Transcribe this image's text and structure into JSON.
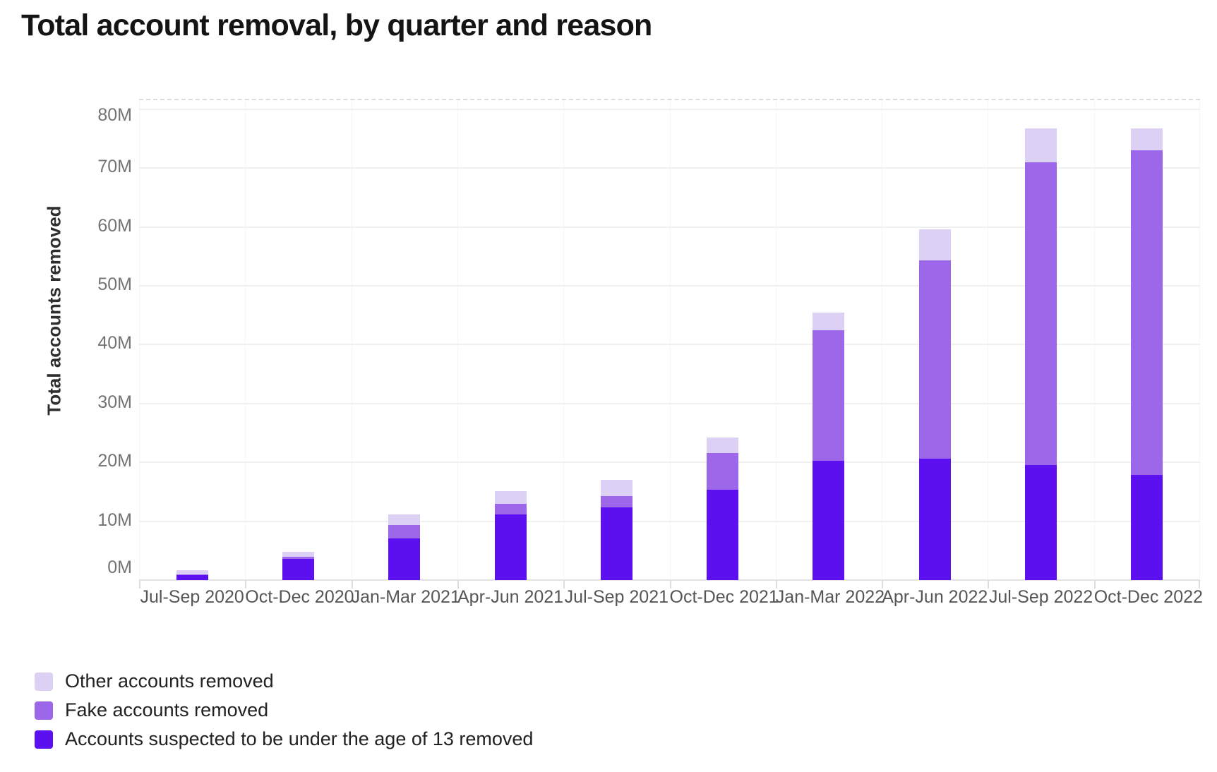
{
  "title": "Total account removal, by quarter and reason",
  "chart_data": {
    "type": "bar",
    "stacked": true,
    "title": "Total account removal, by quarter and reason",
    "xlabel": "",
    "ylabel": "Total accounts removed",
    "ylim": [
      0,
      80
    ],
    "grid": true,
    "legend_position": "bottom-left",
    "yticks": [
      0,
      10,
      20,
      30,
      40,
      50,
      60,
      70,
      80
    ],
    "ytick_suffix": "M",
    "categories": [
      "Jul-Sep 2020",
      "Oct-Dec 2020",
      "Jan-Mar 2021",
      "Apr-Jun 2021",
      "Jul-Sep 2021",
      "Oct-Dec 2021",
      "Jan-Mar 2022",
      "Apr-Jun 2022",
      "Jul-Sep 2022",
      "Oct-Dec 2022"
    ],
    "unit": "millions of accounts",
    "series": [
      {
        "name": "Accounts suspected to be under the age of 13 removed",
        "color": "#5c10f0",
        "values": [
          0.9,
          3.6,
          7.1,
          11.2,
          12.4,
          15.3,
          20.3,
          20.6,
          19.6,
          17.9
        ]
      },
      {
        "name": "Fake accounts removed",
        "color": "#9d67ea",
        "values": [
          0.1,
          0.3,
          2.3,
          1.7,
          1.9,
          6.3,
          22.1,
          33.7,
          51.4,
          55.1
        ]
      },
      {
        "name": "Other accounts removed",
        "color": "#dcd0f5",
        "values": [
          0.7,
          0.9,
          1.8,
          2.2,
          2.7,
          2.6,
          3.1,
          5.3,
          5.8,
          3.7
        ]
      }
    ]
  },
  "legend": {
    "items": [
      {
        "label": "Other accounts removed",
        "color": "#dcd0f5"
      },
      {
        "label": "Fake accounts removed",
        "color": "#9d67ea"
      },
      {
        "label": "Accounts suspected to be under the age of 13 removed",
        "color": "#5c10f0"
      }
    ]
  }
}
